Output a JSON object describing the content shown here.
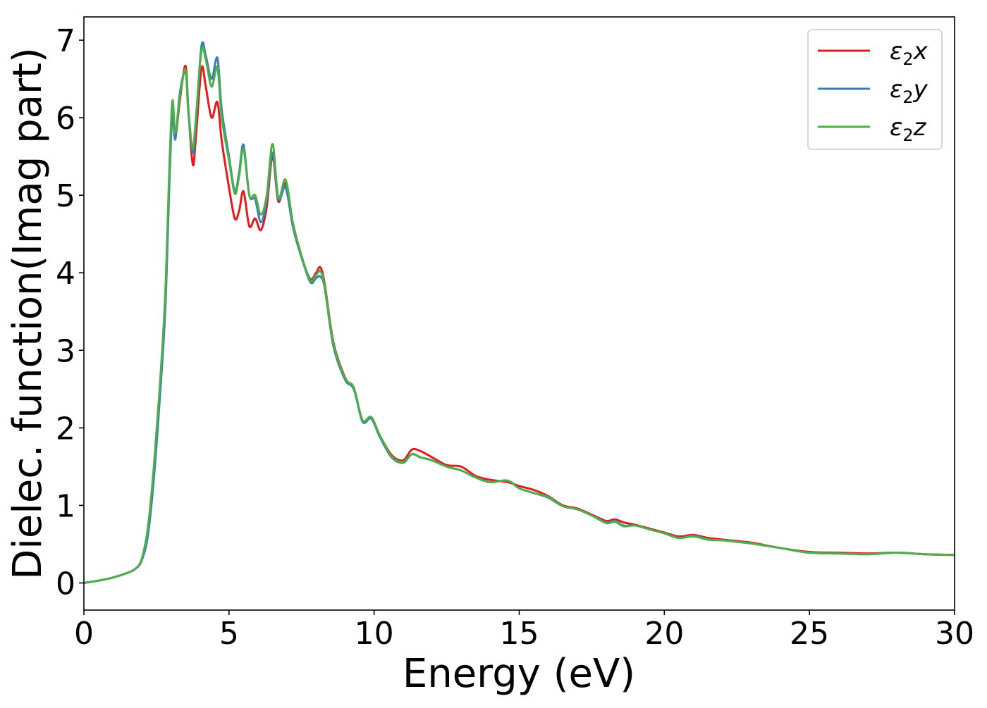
{
  "chart_data": {
    "type": "line",
    "title": "",
    "xlabel": "Energy (eV)",
    "ylabel": "Dielec. function(Imag part)",
    "xlim": [
      0,
      30
    ],
    "ylim": [
      -0.35,
      7.3
    ],
    "xticks": [
      0,
      5,
      10,
      15,
      20,
      25,
      30
    ],
    "yticks": [
      0,
      1,
      2,
      3,
      4,
      5,
      6,
      7
    ],
    "grid": false,
    "legend_position": "top-right",
    "series": [
      {
        "name": "ε2x",
        "legend_main": "ε",
        "legend_sub": "2",
        "legend_tail": "x",
        "color": "#e41a1c",
        "x": [
          0,
          0.5,
          1,
          1.5,
          1.8,
          2.0,
          2.2,
          2.4,
          2.6,
          2.8,
          2.95,
          3.05,
          3.15,
          3.3,
          3.5,
          3.6,
          3.75,
          3.85,
          4.05,
          4.2,
          4.4,
          4.6,
          4.75,
          5.0,
          5.2,
          5.35,
          5.5,
          5.7,
          5.9,
          6.1,
          6.3,
          6.5,
          6.7,
          6.95,
          7.2,
          7.5,
          7.8,
          8.0,
          8.15,
          8.3,
          8.6,
          9.0,
          9.3,
          9.6,
          9.9,
          10.2,
          10.6,
          11.0,
          11.3,
          11.6,
          12.0,
          12.5,
          13.0,
          13.5,
          14.0,
          14.6,
          15.0,
          15.5,
          16.0,
          16.5,
          17.0,
          17.5,
          18.0,
          18.3,
          18.6,
          19.0,
          19.5,
          20.0,
          20.5,
          21.0,
          21.5,
          22.0,
          22.5,
          23.0,
          24.0,
          25.0,
          26.0,
          27.0,
          28.0,
          29.0,
          30.0
        ],
        "y": [
          0.0,
          0.03,
          0.07,
          0.13,
          0.19,
          0.3,
          0.65,
          1.4,
          2.4,
          3.6,
          5.3,
          6.1,
          5.75,
          6.2,
          6.67,
          6.1,
          5.4,
          5.7,
          6.63,
          6.4,
          6.0,
          6.2,
          5.7,
          5.1,
          4.7,
          4.8,
          5.05,
          4.6,
          4.7,
          4.55,
          4.85,
          5.5,
          4.92,
          5.15,
          4.6,
          4.2,
          3.92,
          4.0,
          4.07,
          3.85,
          3.1,
          2.65,
          2.5,
          2.1,
          2.12,
          1.9,
          1.65,
          1.58,
          1.72,
          1.7,
          1.62,
          1.52,
          1.5,
          1.38,
          1.33,
          1.3,
          1.25,
          1.2,
          1.12,
          1.0,
          0.96,
          0.88,
          0.8,
          0.82,
          0.78,
          0.75,
          0.7,
          0.65,
          0.6,
          0.62,
          0.58,
          0.56,
          0.54,
          0.52,
          0.45,
          0.4,
          0.39,
          0.38,
          0.39,
          0.37,
          0.36
        ]
      },
      {
        "name": "ε2y",
        "legend_main": "ε",
        "legend_sub": "2",
        "legend_tail": "y",
        "color": "#377eb8",
        "x": [
          0,
          0.5,
          1,
          1.5,
          1.8,
          2.0,
          2.2,
          2.4,
          2.6,
          2.8,
          2.95,
          3.05,
          3.15,
          3.3,
          3.5,
          3.6,
          3.75,
          3.85,
          4.05,
          4.2,
          4.4,
          4.6,
          4.75,
          5.0,
          5.2,
          5.35,
          5.5,
          5.7,
          5.9,
          6.1,
          6.3,
          6.5,
          6.7,
          6.95,
          7.2,
          7.5,
          7.8,
          8.0,
          8.15,
          8.3,
          8.6,
          9.0,
          9.3,
          9.6,
          9.9,
          10.2,
          10.6,
          11.0,
          11.3,
          11.6,
          12.0,
          12.5,
          13.0,
          13.5,
          14.0,
          14.6,
          15.0,
          15.5,
          16.0,
          16.5,
          17.0,
          17.5,
          18.0,
          18.3,
          18.6,
          19.0,
          19.5,
          20.0,
          20.5,
          21.0,
          21.5,
          22.0,
          22.5,
          23.0,
          24.0,
          25.0,
          26.0,
          27.0,
          28.0,
          29.0,
          30.0
        ],
        "y": [
          0.0,
          0.03,
          0.07,
          0.13,
          0.19,
          0.3,
          0.6,
          1.3,
          2.3,
          3.5,
          5.2,
          6.05,
          5.72,
          6.3,
          6.6,
          6.1,
          5.55,
          5.9,
          6.92,
          6.8,
          6.5,
          6.77,
          6.1,
          5.5,
          5.05,
          5.3,
          5.65,
          5.0,
          4.95,
          4.65,
          4.95,
          5.55,
          4.95,
          5.1,
          4.6,
          4.2,
          3.88,
          3.93,
          3.95,
          3.8,
          3.05,
          2.62,
          2.5,
          2.08,
          2.12,
          1.88,
          1.62,
          1.55,
          1.66,
          1.62,
          1.58,
          1.5,
          1.45,
          1.36,
          1.3,
          1.32,
          1.22,
          1.16,
          1.1,
          0.99,
          0.95,
          0.87,
          0.78,
          0.8,
          0.74,
          0.74,
          0.69,
          0.64,
          0.58,
          0.61,
          0.56,
          0.55,
          0.53,
          0.51,
          0.45,
          0.39,
          0.38,
          0.37,
          0.39,
          0.37,
          0.36
        ]
      },
      {
        "name": "ε2z",
        "legend_main": "ε",
        "legend_sub": "2",
        "legend_tail": "z",
        "color": "#4daf4a",
        "x": [
          0,
          0.5,
          1,
          1.5,
          1.8,
          2.0,
          2.2,
          2.4,
          2.6,
          2.8,
          2.95,
          3.05,
          3.15,
          3.3,
          3.5,
          3.6,
          3.75,
          3.85,
          4.05,
          4.2,
          4.4,
          4.6,
          4.75,
          5.0,
          5.2,
          5.35,
          5.5,
          5.7,
          5.9,
          6.1,
          6.3,
          6.5,
          6.7,
          6.95,
          7.2,
          7.5,
          7.8,
          8.0,
          8.15,
          8.3,
          8.6,
          9.0,
          9.3,
          9.6,
          9.9,
          10.2,
          10.6,
          11.0,
          11.3,
          11.6,
          12.0,
          12.5,
          13.0,
          13.5,
          14.0,
          14.6,
          15.0,
          15.5,
          16.0,
          16.5,
          17.0,
          17.5,
          18.0,
          18.3,
          18.6,
          19.0,
          19.5,
          20.0,
          20.5,
          21.0,
          21.5,
          22.0,
          22.5,
          23.0,
          24.0,
          25.0,
          26.0,
          27.0,
          28.0,
          29.0,
          30.0
        ],
        "y": [
          0.0,
          0.03,
          0.07,
          0.13,
          0.19,
          0.32,
          0.7,
          1.45,
          2.45,
          3.7,
          5.4,
          6.22,
          5.8,
          6.25,
          6.62,
          6.05,
          5.6,
          5.95,
          6.86,
          6.75,
          6.4,
          6.65,
          6.0,
          5.45,
          5.02,
          5.25,
          5.6,
          5.0,
          5.0,
          4.75,
          5.0,
          5.66,
          4.97,
          5.2,
          4.65,
          4.22,
          3.9,
          3.97,
          4.02,
          3.82,
          3.08,
          2.64,
          2.52,
          2.1,
          2.14,
          1.9,
          1.63,
          1.56,
          1.66,
          1.62,
          1.58,
          1.5,
          1.45,
          1.36,
          1.3,
          1.32,
          1.22,
          1.16,
          1.11,
          0.99,
          0.95,
          0.87,
          0.77,
          0.79,
          0.73,
          0.74,
          0.69,
          0.64,
          0.58,
          0.6,
          0.56,
          0.55,
          0.53,
          0.51,
          0.45,
          0.39,
          0.38,
          0.37,
          0.39,
          0.37,
          0.36
        ]
      }
    ]
  }
}
